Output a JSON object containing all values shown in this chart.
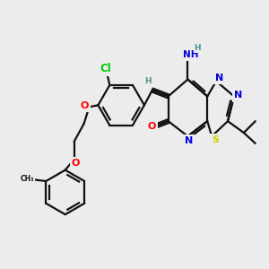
{
  "bg_color": "#ececec",
  "lw": 1.6,
  "bond_color": "#111111",
  "atom_colors": {
    "Cl": "#00cc00",
    "O": "#ff0000",
    "N": "#0000dd",
    "S": "#cccc00",
    "H": "#4a9090"
  },
  "fs": 8.0,
  "fs_small": 6.5,
  "figsize": [
    3.0,
    3.0
  ],
  "dpi": 100
}
